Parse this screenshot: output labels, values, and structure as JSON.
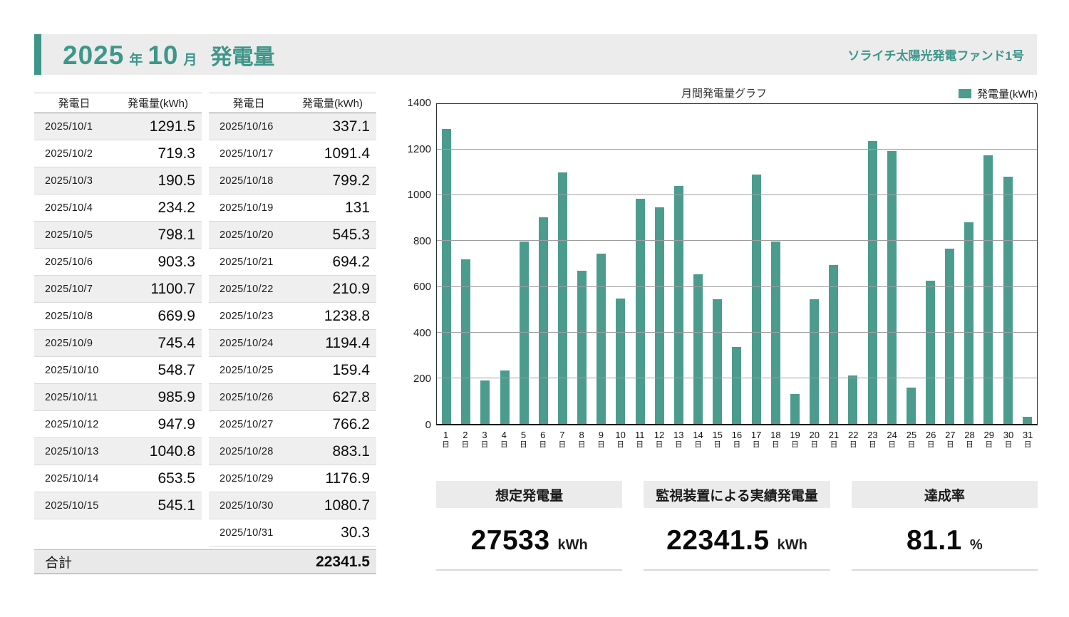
{
  "header": {
    "title_year": "2025",
    "title_year_unit": "年",
    "title_month": "10",
    "title_month_unit": "月",
    "title_label": "発電量",
    "fund_name": "ソライチ太陽光発電ファンド1号",
    "accent_color": "#3e968a"
  },
  "tables": {
    "col_date": "発電日",
    "col_value": "発電量(kWh)",
    "left_rows": [
      {
        "date": "2025/10/1",
        "value": "1291.5"
      },
      {
        "date": "2025/10/2",
        "value": "719.3"
      },
      {
        "date": "2025/10/3",
        "value": "190.5"
      },
      {
        "date": "2025/10/4",
        "value": "234.2"
      },
      {
        "date": "2025/10/5",
        "value": "798.1"
      },
      {
        "date": "2025/10/6",
        "value": "903.3"
      },
      {
        "date": "2025/10/7",
        "value": "1100.7"
      },
      {
        "date": "2025/10/8",
        "value": "669.9"
      },
      {
        "date": "2025/10/9",
        "value": "745.4"
      },
      {
        "date": "2025/10/10",
        "value": "548.7"
      },
      {
        "date": "2025/10/11",
        "value": "985.9"
      },
      {
        "date": "2025/10/12",
        "value": "947.9"
      },
      {
        "date": "2025/10/13",
        "value": "1040.8"
      },
      {
        "date": "2025/10/14",
        "value": "653.5"
      },
      {
        "date": "2025/10/15",
        "value": "545.1"
      }
    ],
    "right_rows": [
      {
        "date": "2025/10/16",
        "value": "337.1"
      },
      {
        "date": "2025/10/17",
        "value": "1091.4"
      },
      {
        "date": "2025/10/18",
        "value": "799.2"
      },
      {
        "date": "2025/10/19",
        "value": "131"
      },
      {
        "date": "2025/10/20",
        "value": "545.3"
      },
      {
        "date": "2025/10/21",
        "value": "694.2"
      },
      {
        "date": "2025/10/22",
        "value": "210.9"
      },
      {
        "date": "2025/10/23",
        "value": "1238.8"
      },
      {
        "date": "2025/10/24",
        "value": "1194.4"
      },
      {
        "date": "2025/10/25",
        "value": "159.4"
      },
      {
        "date": "2025/10/26",
        "value": "627.8"
      },
      {
        "date": "2025/10/27",
        "value": "766.2"
      },
      {
        "date": "2025/10/28",
        "value": "883.1"
      },
      {
        "date": "2025/10/29",
        "value": "1176.9"
      },
      {
        "date": "2025/10/30",
        "value": "1080.7"
      },
      {
        "date": "2025/10/31",
        "value": "30.3"
      }
    ],
    "total_label": "合計",
    "total_value": "22341.5"
  },
  "chart_data": {
    "type": "bar",
    "title": "月間発電量グラフ",
    "legend": "発電量(kWh)",
    "bar_color": "#4c9c8e",
    "grid": true,
    "legend_position": "top-right",
    "ylim": [
      0,
      1400
    ],
    "yticks": [
      0,
      200,
      400,
      600,
      800,
      1000,
      1200,
      1400
    ],
    "categories": [
      "1",
      "2",
      "3",
      "4",
      "5",
      "6",
      "7",
      "8",
      "9",
      "10",
      "11",
      "12",
      "13",
      "14",
      "15",
      "16",
      "17",
      "18",
      "19",
      "20",
      "21",
      "22",
      "23",
      "24",
      "25",
      "26",
      "27",
      "28",
      "29",
      "30",
      "31"
    ],
    "category_suffix": "日",
    "values": [
      1291.5,
      719.3,
      190.5,
      234.2,
      798.1,
      903.3,
      1100.7,
      669.9,
      745.4,
      548.7,
      985.9,
      947.9,
      1040.8,
      653.5,
      545.1,
      337.1,
      1091.4,
      799.2,
      131,
      545.3,
      694.2,
      210.9,
      1238.8,
      1194.4,
      159.4,
      627.8,
      766.2,
      883.1,
      1176.9,
      1080.7,
      30.3
    ]
  },
  "summary": [
    {
      "label": "想定発電量",
      "value": "27533",
      "unit": "kWh"
    },
    {
      "label": "監視装置による実績発電量",
      "value": "22341.5",
      "unit": "kWh"
    },
    {
      "label": "達成率",
      "value": "81.1",
      "unit": "%"
    }
  ]
}
